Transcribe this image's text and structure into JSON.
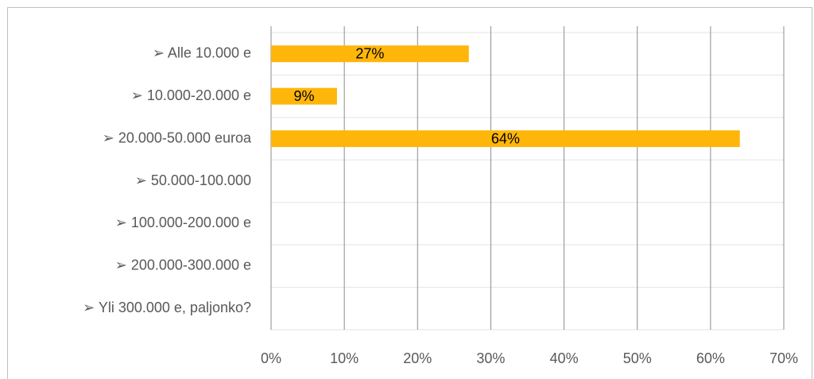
{
  "chart_data": {
    "type": "barh",
    "categories": [
      "➢ Alle 10.000 e",
      "➢ 10.000-20.000 e",
      "➢ 20.000-50.000 euroa",
      "➢ 50.000-100.000",
      "➢ 100.000-200.000 e",
      "➢ 200.000-300.000 e",
      "➢ Yli 300.000 e, paljonko?"
    ],
    "values": [
      27,
      9,
      64,
      null,
      null,
      null,
      null
    ],
    "value_labels": [
      "27%",
      "9%",
      "64%",
      null,
      null,
      null,
      null
    ],
    "color": "#ffb60a",
    "xlim": [
      0,
      70
    ],
    "xticks": [
      {
        "value": 0,
        "label": "0%"
      },
      {
        "value": 10,
        "label": "10%"
      },
      {
        "value": 20,
        "label": "20%"
      },
      {
        "value": 30,
        "label": "30%"
      },
      {
        "value": 40,
        "label": "40%"
      },
      {
        "value": 50,
        "label": "50%"
      },
      {
        "value": 60,
        "label": "60%"
      },
      {
        "value": 70,
        "label": "70%"
      }
    ],
    "grid": true
  }
}
